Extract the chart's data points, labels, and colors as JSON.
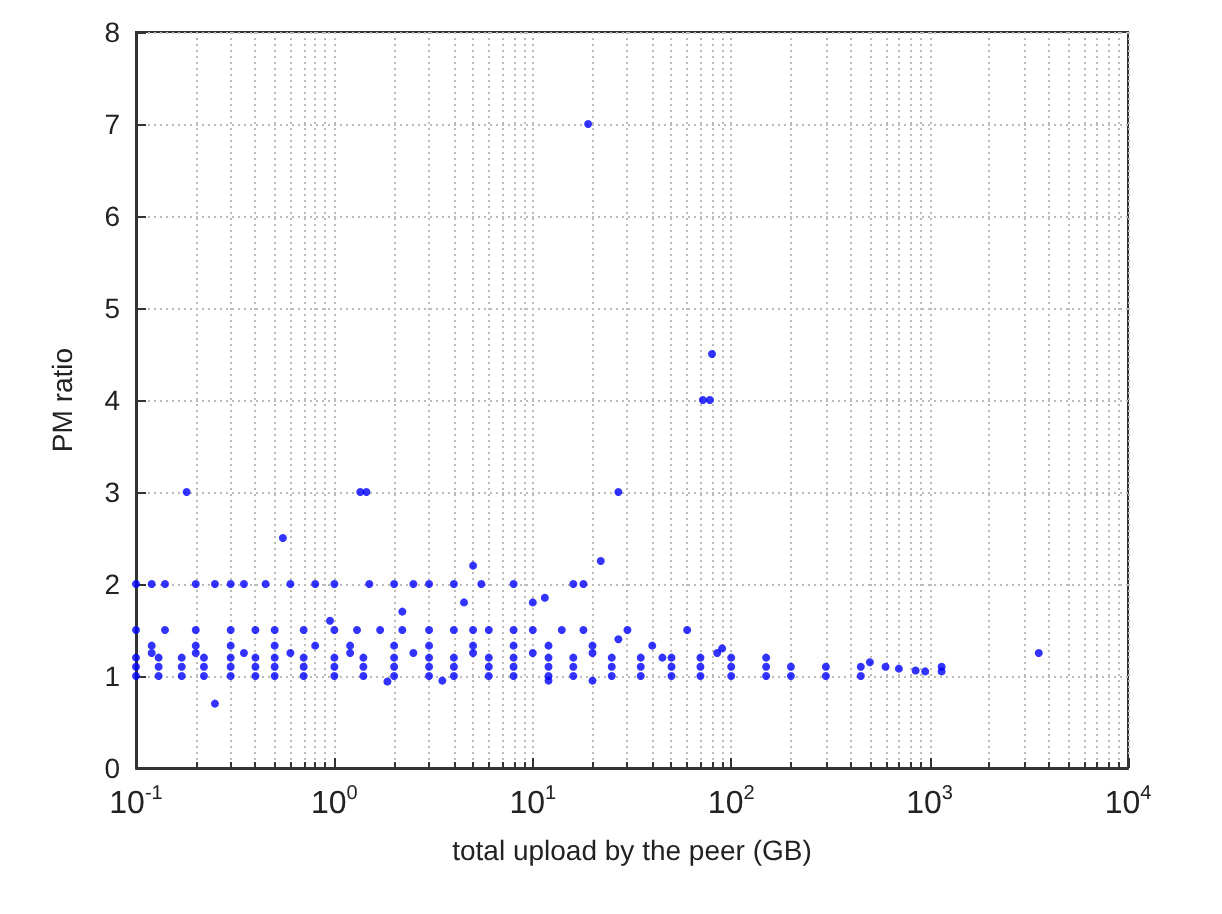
{
  "chart_data": {
    "type": "scatter",
    "xlabel": "total upload by the peer (GB)",
    "ylabel": "PM ratio",
    "log": "x",
    "grid": true,
    "marker": "circle",
    "xlim": [
      0.1,
      10000
    ],
    "ylim": [
      0,
      8
    ],
    "xticks": [
      {
        "value": 0.1,
        "label": "10$^{-1}$"
      },
      {
        "value": 1,
        "label": "10$^{0}$"
      },
      {
        "value": 10,
        "label": "10$^{1}$"
      },
      {
        "value": 100,
        "label": "10$^{2}$"
      },
      {
        "value": 1000,
        "label": "10$^{3}$"
      },
      {
        "value": 10000,
        "label": "10$^{4}$"
      }
    ],
    "yticks": [
      0,
      1,
      2,
      3,
      4,
      5,
      6,
      7,
      8
    ],
    "series": [
      {
        "color": "#0000ff",
        "x": [
          0.18,
          1.35,
          1.45,
          19,
          27,
          72,
          78,
          80,
          0.55,
          5,
          22,
          0.25,
          1.85,
          3.5,
          20,
          12,
          3550,
          1150,
          1150,
          0.1,
          0.12,
          0.14,
          0.2,
          0.25,
          0.3,
          0.35,
          0.45,
          0.6,
          0.8,
          1,
          1.5,
          2,
          2.5,
          3,
          4,
          5.5,
          8,
          16,
          18,
          0.95,
          2.2,
          10,
          11.5,
          4.5,
          27,
          60,
          85,
          0.1,
          0.14,
          0.2,
          0.3,
          0.4,
          0.5,
          0.7,
          1,
          1.3,
          1.7,
          2.2,
          3,
          4,
          5,
          6,
          8,
          10,
          14,
          18,
          30,
          0.12,
          0.2,
          0.3,
          0.5,
          0.8,
          1.2,
          2,
          3,
          5,
          8,
          12,
          20,
          40,
          90,
          0.1,
          0.13,
          0.17,
          0.22,
          0.3,
          0.4,
          0.5,
          0.7,
          1,
          1.4,
          2,
          3,
          4,
          6,
          8,
          12,
          16,
          25,
          35,
          50,
          70,
          100,
          150,
          200,
          300,
          450,
          0.1,
          0.13,
          0.17,
          0.22,
          0.3,
          0.4,
          0.5,
          0.7,
          1,
          1.4,
          2,
          3,
          4,
          6,
          8,
          12,
          16,
          25,
          35,
          50,
          70,
          100,
          150,
          200,
          300,
          450,
          0.1,
          0.13,
          0.17,
          0.22,
          0.3,
          0.4,
          0.5,
          0.7,
          1,
          1.4,
          2,
          3,
          4,
          6,
          8,
          12,
          16,
          25,
          35,
          50,
          70,
          100,
          150,
          0.12,
          0.2,
          0.35,
          0.6,
          1.2,
          2.5,
          5,
          10,
          20,
          45,
          500,
          600,
          700,
          850,
          950
        ],
        "values": [
          3,
          3,
          3,
          7,
          3,
          4,
          4,
          4.5,
          2.5,
          2.2,
          2.25,
          0.7,
          0.94,
          0.95,
          0.95,
          0.95,
          1.25,
          1.1,
          1.05,
          2,
          2,
          2,
          2,
          2,
          2,
          2,
          2,
          2,
          2,
          2,
          2,
          2,
          2,
          2,
          2,
          2,
          2,
          2,
          2,
          1.6,
          1.7,
          1.8,
          1.85,
          1.8,
          1.4,
          1.5,
          1.25,
          1.5,
          1.5,
          1.5,
          1.5,
          1.5,
          1.5,
          1.5,
          1.5,
          1.5,
          1.5,
          1.5,
          1.5,
          1.5,
          1.5,
          1.5,
          1.5,
          1.5,
          1.5,
          1.5,
          1.5,
          1.33,
          1.33,
          1.33,
          1.33,
          1.33,
          1.33,
          1.33,
          1.33,
          1.33,
          1.33,
          1.33,
          1.33,
          1.33,
          1.3,
          1,
          1,
          1,
          1,
          1,
          1,
          1,
          1,
          1,
          1,
          1,
          1,
          1,
          1,
          1,
          1,
          1,
          1,
          1,
          1,
          1,
          1,
          1,
          1,
          1,
          1,
          1.1,
          1.1,
          1.1,
          1.1,
          1.1,
          1.1,
          1.1,
          1.1,
          1.1,
          1.1,
          1.1,
          1.1,
          1.1,
          1.1,
          1.1,
          1.1,
          1.1,
          1.1,
          1.1,
          1.1,
          1.1,
          1.1,
          1.1,
          1.1,
          1.1,
          1.1,
          1.2,
          1.2,
          1.2,
          1.2,
          1.2,
          1.2,
          1.2,
          1.2,
          1.2,
          1.2,
          1.2,
          1.2,
          1.2,
          1.2,
          1.2,
          1.2,
          1.2,
          1.2,
          1.2,
          1.2,
          1.2,
          1.2,
          1.2,
          1.25,
          1.25,
          1.25,
          1.25,
          1.25,
          1.25,
          1.25,
          1.25,
          1.25,
          1.2,
          1.15,
          1.1,
          1.08,
          1.06,
          1.05
        ]
      }
    ]
  }
}
